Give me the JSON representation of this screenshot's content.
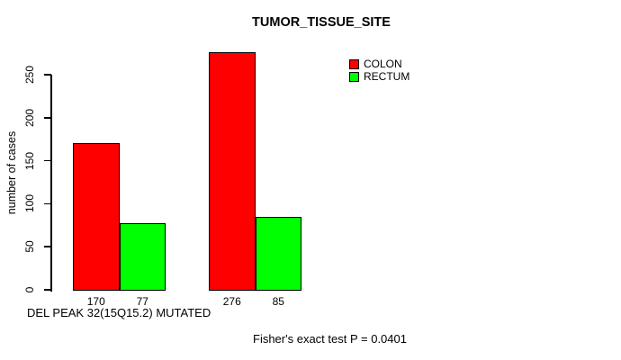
{
  "chart_data": {
    "type": "bar",
    "title": "TUMOR_TISSUE_SITE",
    "ylabel": "number of cases",
    "xlabel": "DEL PEAK 32(15Q15.2) MUTATED",
    "annotation": "Fisher's exact test P = 0.0401",
    "categories": [
      "",
      ""
    ],
    "series": [
      {
        "name": "COLON",
        "color": "#ff0000",
        "values": [
          170,
          276
        ]
      },
      {
        "name": "RECTUM",
        "color": "#00ff00",
        "values": [
          77,
          85
        ]
      }
    ],
    "bar_value_labels": [
      [
        170,
        77
      ],
      [
        276,
        85
      ]
    ],
    "yticks": [
      0,
      50,
      100,
      150,
      200,
      250
    ],
    "ylim": [
      0,
      290
    ],
    "grid": false,
    "legend_position": "top-right",
    "bar_border_color": "#000000",
    "axis_color": "#000000",
    "text_color": "#000000",
    "background_color": "#ffffff"
  }
}
